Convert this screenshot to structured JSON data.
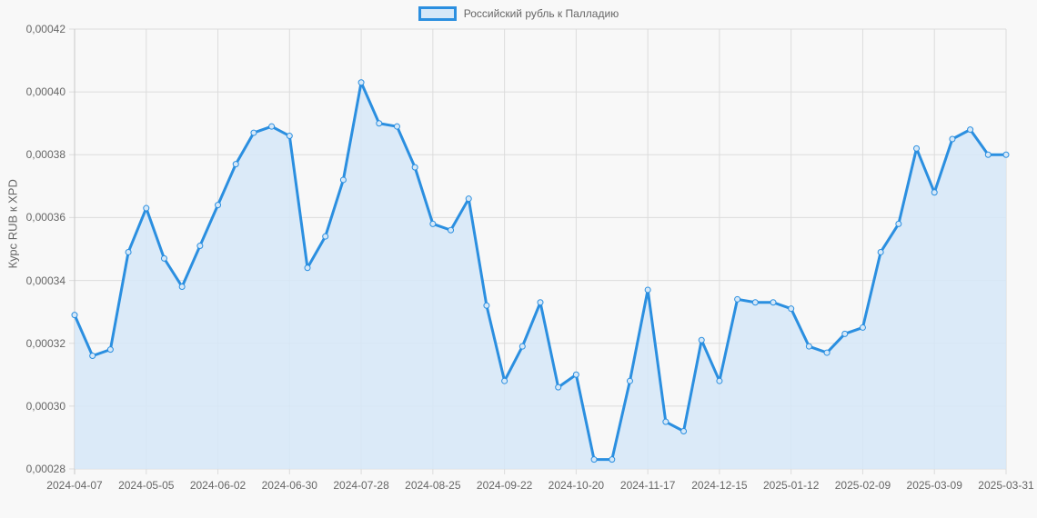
{
  "chart_data": {
    "type": "line",
    "title": "",
    "xlabel": "",
    "ylabel": "Курс RUB к XPD",
    "ylim": [
      0.00028,
      0.00042
    ],
    "grid": true,
    "legend_position": "top",
    "y_ticks": [
      "0,00042",
      "0,00040",
      "0,00038",
      "0,00036",
      "0,00034",
      "0,00032",
      "0,00030",
      "0,00028"
    ],
    "x_ticks": [
      "2024-04-07",
      "2024-05-05",
      "2024-06-02",
      "2024-06-30",
      "2024-07-28",
      "2024-08-25",
      "2024-09-22",
      "2024-10-20",
      "2024-11-17",
      "2024-12-15",
      "2025-01-12",
      "2025-02-09",
      "2025-03-09",
      "2025-03-31"
    ],
    "series": [
      {
        "name": "Российский рубль к Палладию",
        "color": "#2b8fe0",
        "fill": "#d6e8f8",
        "values": [
          0.000329,
          0.000316,
          0.000318,
          0.000349,
          0.000363,
          0.000347,
          0.000338,
          0.000351,
          0.000364,
          0.000377,
          0.000387,
          0.000389,
          0.000386,
          0.000344,
          0.000354,
          0.000372,
          0.000403,
          0.00039,
          0.000389,
          0.000376,
          0.000358,
          0.000356,
          0.000366,
          0.000332,
          0.000308,
          0.000319,
          0.000333,
          0.000306,
          0.00031,
          0.000283,
          0.000283,
          0.000308,
          0.000337,
          0.000295,
          0.000292,
          0.000321,
          0.000308,
          0.000334,
          0.000333,
          0.000333,
          0.000331,
          0.000319,
          0.000317,
          0.000323,
          0.000325,
          0.000349,
          0.000358,
          0.000382,
          0.000368,
          0.000385,
          0.000388,
          0.00038,
          0.00038
        ]
      }
    ]
  },
  "legend": {
    "label": "Российский рубль к Палладию"
  },
  "axis": {
    "y_title": "Курс RUB к XPD",
    "y_ticks": [
      "0,00042",
      "0,00040",
      "0,00038",
      "0,00036",
      "0,00034",
      "0,00032",
      "0,00030",
      "0,00028"
    ],
    "x_ticks": [
      "2024-04-07",
      "2024-05-05",
      "2024-06-02",
      "2024-06-30",
      "2024-07-28",
      "2024-08-25",
      "2024-09-22",
      "2024-10-20",
      "2024-11-17",
      "2024-12-15",
      "2025-01-12",
      "2025-02-09",
      "2025-03-09",
      "2025-03-31"
    ]
  }
}
